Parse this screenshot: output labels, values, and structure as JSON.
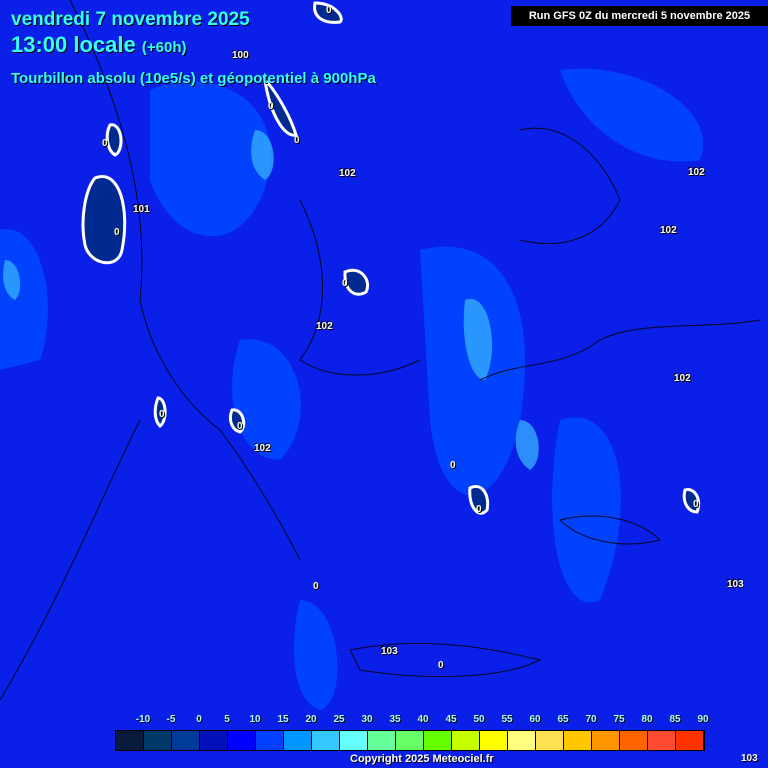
{
  "header": {
    "date": "vendredi 7 novembre 2025",
    "time": "13:00 locale",
    "lead": "(+60h)",
    "parameter": "Tourbillon absolu (10e5/s) et géopotentiel à 900hPa",
    "run": "Run GFS 0Z du mercredi 5 novembre 2025"
  },
  "geopotential_labels": [
    "100",
    "101",
    "102",
    "102",
    "102",
    "102",
    "102",
    "102",
    "103",
    "103",
    "103"
  ],
  "vorticity_zero_label": "0",
  "legend": {
    "ticks": [
      "-10",
      "-5",
      "0",
      "5",
      "10",
      "15",
      "20",
      "25",
      "30",
      "35",
      "40",
      "45",
      "50",
      "55",
      "60",
      "65",
      "70",
      "75",
      "80",
      "85",
      "90"
    ],
    "colors": [
      "#0a1a3c",
      "#003a6a",
      "#003a9a",
      "#0010bb",
      "#0000ff",
      "#0040ff",
      "#0096ff",
      "#33c8ff",
      "#66ffff",
      "#66ff99",
      "#66ff66",
      "#66ff00",
      "#c8ff00",
      "#ffff00",
      "#ffff80",
      "#ffe050",
      "#ffc800",
      "#ff9600",
      "#ff6400",
      "#ff4b32",
      "#ff3200"
    ]
  },
  "footer": {
    "copyright": "Copyright 2025 Meteociel.fr",
    "corner_label": "103"
  }
}
